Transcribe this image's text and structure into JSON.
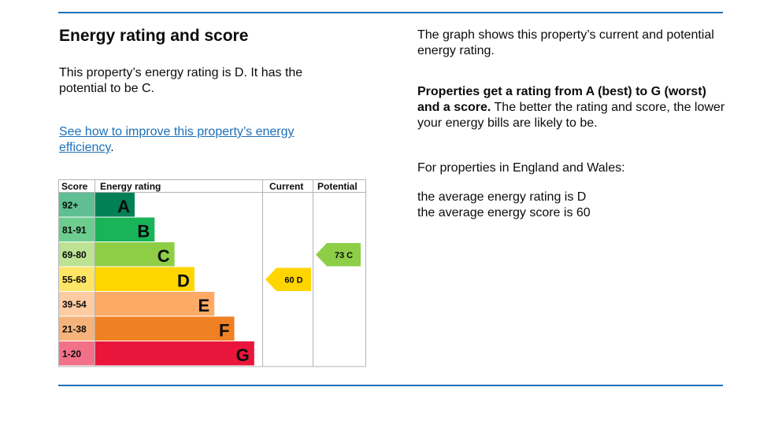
{
  "heading": "Energy rating and score",
  "rating_text": "This property’s energy rating is D. It has the potential to be C.",
  "improve_link": "See how to improve this property’s energy efficiency",
  "improve_link_suffix": ".",
  "graph_description": "The graph shows this property’s current and potential energy rating.",
  "rating_explainer_bold": "Properties get a rating from A (best) to G (worst) and a score.",
  "rating_explainer_rest": " The better the rating and score, the lower your energy bills are likely to be.",
  "region_intro": "For properties in England and Wales:",
  "average_rating_text": "the average energy rating is D",
  "average_score_text": "the average energy score is 60",
  "chart_data": {
    "type": "bar",
    "columns": [
      "Score",
      "Energy rating",
      "Current",
      "Potential"
    ],
    "bands": [
      {
        "score": "92+",
        "letter": "A",
        "color": "#008054",
        "score_bg": "#5fbf93"
      },
      {
        "score": "81-91",
        "letter": "B",
        "color": "#19b459",
        "score_bg": "#6dcd8f"
      },
      {
        "score": "69-80",
        "letter": "C",
        "color": "#8dce46",
        "score_bg": "#bde293"
      },
      {
        "score": "55-68",
        "letter": "D",
        "color": "#ffd500",
        "score_bg": "#ffe566"
      },
      {
        "score": "39-54",
        "letter": "E",
        "color": "#fcaa65",
        "score_bg": "#fdcca3"
      },
      {
        "score": "21-38",
        "letter": "F",
        "color": "#ef8023",
        "score_bg": "#f5b37b"
      },
      {
        "score": "1-20",
        "letter": "G",
        "color": "#e9153b",
        "score_bg": "#f27189"
      }
    ],
    "current": {
      "score": 60,
      "letter": "D",
      "label": "60 D",
      "band_index": 3,
      "color": "#ffd500"
    },
    "potential": {
      "score": 73,
      "letter": "C",
      "label": "73 C",
      "band_index": 2,
      "color": "#8dce46"
    }
  }
}
